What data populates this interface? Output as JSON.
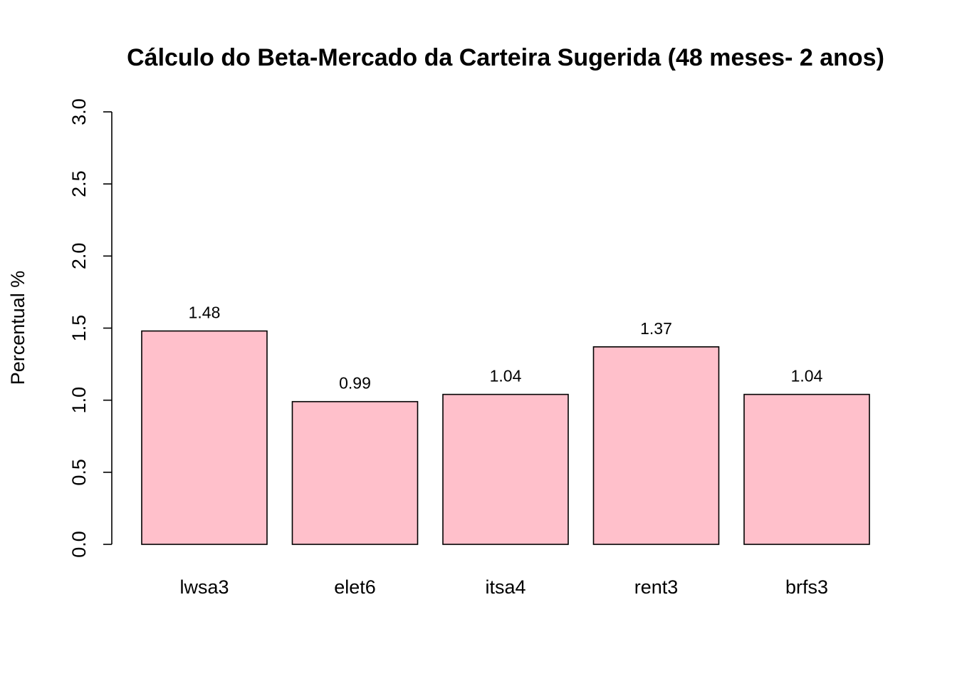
{
  "chart_data": {
    "type": "bar",
    "title": "Cálculo do Beta-Mercado da Carteira Sugerida (48 meses- 2 anos)",
    "xlabel": "",
    "ylabel": "Percentual %",
    "categories": [
      "lwsa3",
      "elet6",
      "itsa4",
      "rent3",
      "brfs3"
    ],
    "values": [
      1.48,
      0.99,
      1.04,
      1.37,
      1.04
    ],
    "data_labels": [
      "1.48",
      "0.99",
      "1.04",
      "1.37",
      "1.04"
    ],
    "ylim": [
      0,
      3
    ],
    "yticks": [
      0.0,
      0.5,
      1.0,
      1.5,
      2.0,
      2.5,
      3.0
    ],
    "ytick_labels": [
      "0.0",
      "0.5",
      "1.0",
      "1.5",
      "2.0",
      "2.5",
      "3.0"
    ],
    "grid": false,
    "legend": "none",
    "bar_color": "#FFC0CB",
    "border_color": "#000000"
  }
}
